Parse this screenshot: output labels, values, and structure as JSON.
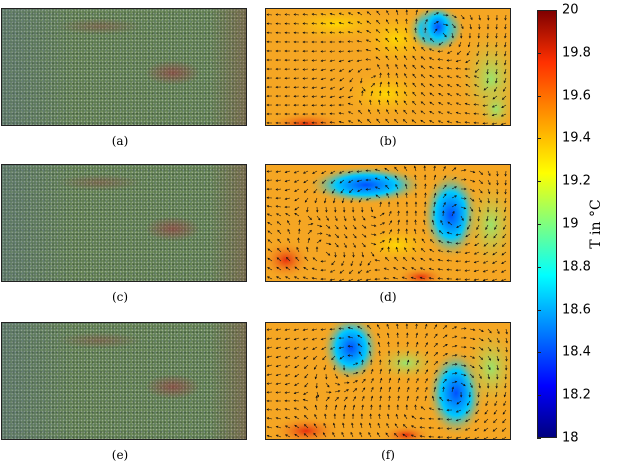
{
  "captions": [
    "(a)",
    "(b)",
    "(c)",
    "(d)",
    "(e)",
    "(f)"
  ],
  "colorbar": {
    "label": "T in °C",
    "min": 18,
    "max": 20,
    "ticks": [
      "20",
      "19.8",
      "19.6",
      "19.4",
      "19.2",
      "19",
      "18.8",
      "18.6",
      "18.4",
      "18.2",
      "18"
    ]
  },
  "colors": {
    "cold": "#0044ff",
    "mid": "#f5a623",
    "warm": "#e8350f"
  }
}
